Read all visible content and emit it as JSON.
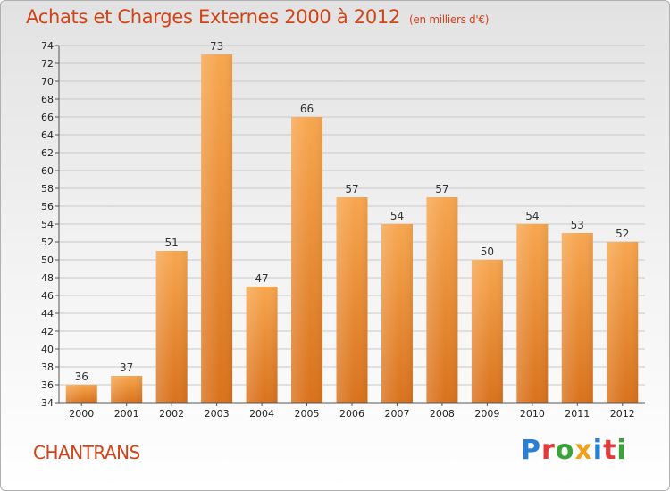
{
  "header": {
    "title": "Achats et Charges Externes 2000 à 2012",
    "unit": "(en milliers d'€)"
  },
  "footer": {
    "place": "CHANTRANS",
    "logo": {
      "text": "Proxiti",
      "letters": [
        {
          "ch": "P",
          "color": "#2b7fd0"
        },
        {
          "ch": "r",
          "color": "#e23b3b"
        },
        {
          "ch": "o",
          "color": "#3aa33a"
        },
        {
          "ch": "x",
          "color": "#f0a01a"
        },
        {
          "ch": "i",
          "color": "#2b7fd0"
        },
        {
          "ch": "t",
          "color": "#e23b3b"
        },
        {
          "ch": "i",
          "color": "#3aa33a"
        }
      ]
    }
  },
  "colors": {
    "bar_top": "#f7a64f",
    "bar_bottom": "#d9721c",
    "grid": "#c8c8c8",
    "axis_text": "#222222"
  },
  "chart_data": {
    "type": "bar",
    "title": "Achats et Charges Externes 2000 à 2012",
    "subtitle": "(en milliers d'€)",
    "categories": [
      "2000",
      "2001",
      "2002",
      "2003",
      "2004",
      "2005",
      "2006",
      "2007",
      "2008",
      "2009",
      "2010",
      "2011",
      "2012"
    ],
    "values": [
      36,
      37,
      51,
      73,
      47,
      66,
      57,
      54,
      57,
      50,
      54,
      53,
      52
    ],
    "ylim": [
      34,
      74
    ],
    "yticks": [
      34,
      36,
      38,
      40,
      42,
      44,
      46,
      48,
      50,
      52,
      54,
      56,
      58,
      60,
      62,
      64,
      66,
      68,
      70,
      72,
      74
    ],
    "grid": true,
    "data_labels": true
  }
}
